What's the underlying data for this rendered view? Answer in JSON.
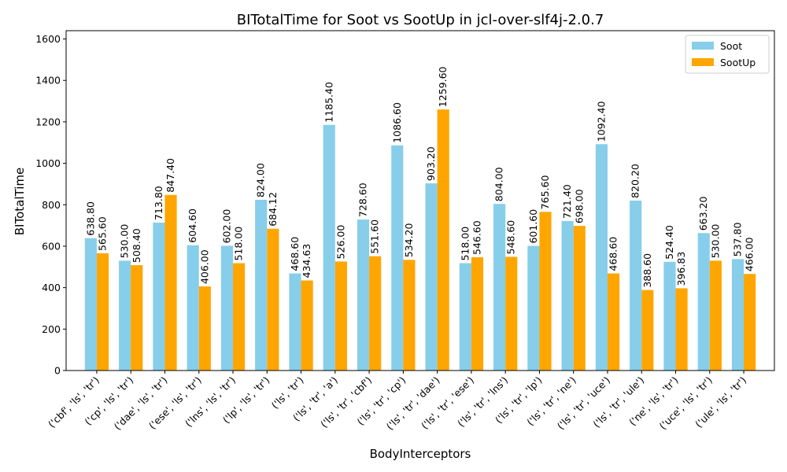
{
  "chart_data": {
    "type": "bar",
    "title": "BITotalTime for Soot vs SootUp in jcl-over-slf4j-2.0.7",
    "xlabel": "BodyInterceptors",
    "ylabel": "BITotalTime",
    "ylim": [
      0,
      1640
    ],
    "yticks": [
      0,
      200,
      400,
      600,
      800,
      1000,
      1200,
      1400,
      1600
    ],
    "ytick_labels": [
      "0",
      "200",
      "400",
      "600",
      "800",
      "1000",
      "1200",
      "1400",
      "1600"
    ],
    "grid": false,
    "legend_position": "top-right",
    "categories": [
      "('cbf', 'ls', 'tr')",
      "('cp', 'ls', 'tr')",
      "('dae', 'ls', 'tr')",
      "('ese', 'ls', 'tr')",
      "('lns', 'ls', 'tr')",
      "('lp', 'ls', 'tr')",
      "('ls', 'tr')",
      "('ls', 'tr', 'a')",
      "('ls', 'tr', 'cbf')",
      "('ls', 'tr', 'cp')",
      "('ls', 'tr', 'dae')",
      "('ls', 'tr', 'ese')",
      "('ls', 'tr', 'lns')",
      "('ls', 'tr', 'lp')",
      "('ls', 'tr', 'ne')",
      "('ls', 'tr', 'uce')",
      "('ls', 'tr', 'ule')",
      "('ne', 'ls', 'tr')",
      "('uce', 'ls', 'tr')",
      "('ule', 'ls', 'tr')"
    ],
    "series": [
      {
        "name": "Soot",
        "color": "#87CEEB",
        "values": [
          638.8,
          530.0,
          713.8,
          604.6,
          602.0,
          824.0,
          468.6,
          1185.4,
          728.6,
          1086.6,
          903.2,
          518.0,
          804.0,
          601.6,
          721.4,
          1092.4,
          820.2,
          524.4,
          663.2,
          537.8
        ],
        "labels": [
          "638.80",
          "530.00",
          "713.80",
          "604.60",
          "602.00",
          "824.00",
          "468.60",
          "1185.40",
          "728.60",
          "1086.60",
          "903.20",
          "518.00",
          "804.00",
          "601.60",
          "721.40",
          "1092.40",
          "820.20",
          "524.40",
          "663.20",
          "537.80"
        ]
      },
      {
        "name": "SootUp",
        "color": "#FFA500",
        "values": [
          565.6,
          508.4,
          847.4,
          406.0,
          518.0,
          684.12,
          434.63,
          526.0,
          551.6,
          534.2,
          1259.6,
          546.6,
          548.6,
          765.6,
          698.0,
          468.6,
          388.6,
          396.83,
          530.0,
          466.0
        ],
        "labels": [
          "565.60",
          "508.40",
          "847.40",
          "406.00",
          "518.00",
          "684.12",
          "434.63",
          "526.00",
          "551.60",
          "534.20",
          "1259.60",
          "546.60",
          "548.60",
          "765.60",
          "698.00",
          "468.60",
          "388.60",
          "396.83",
          "530.00",
          "466.00"
        ]
      }
    ]
  }
}
